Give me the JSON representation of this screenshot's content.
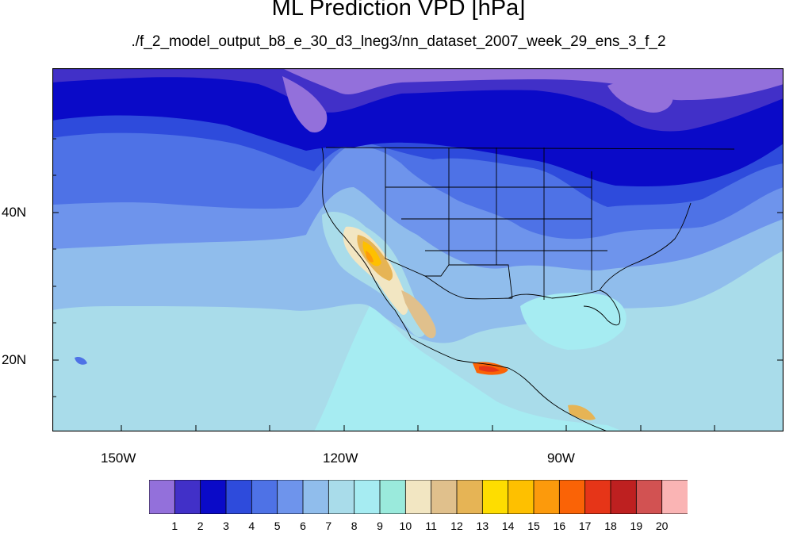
{
  "title": "ML Prediction VPD [hPa]",
  "subtitle": "./f_2_model_output_b8_e_30_d3_lneg3/nn_dataset_2007_week_29_ens_3_f_2",
  "axes": {
    "x_ticks": [
      {
        "label": "150W",
        "lon": -150
      },
      {
        "label": "120W",
        "lon": -120
      },
      {
        "label": "90W",
        "lon": -90
      }
    ],
    "y_ticks": [
      {
        "label": "40N",
        "lat": 40
      },
      {
        "label": "20N",
        "lat": 20
      }
    ],
    "lon_range": [
      -159.5,
      -61
    ],
    "lat_range": [
      11,
      59
    ]
  },
  "colorbar": {
    "labels": [
      "1",
      "2",
      "3",
      "4",
      "5",
      "6",
      "7",
      "8",
      "9",
      "10",
      "11",
      "12",
      "13",
      "14",
      "15",
      "16",
      "17",
      "18",
      "19",
      "20"
    ],
    "colors": [
      "#9370db",
      "#4130c8",
      "#0a0ac8",
      "#2e4bdc",
      "#4e72e6",
      "#6e94ec",
      "#90bdec",
      "#a9dcea",
      "#a6ecf2",
      "#9aeadc",
      "#f2e6c2",
      "#e0c08c",
      "#e6b455",
      "#fedd00",
      "#fec000",
      "#fc9a0c",
      "#fa6306",
      "#e63518",
      "#be2020",
      "#d25252",
      "#fab4b4"
    ]
  }
}
